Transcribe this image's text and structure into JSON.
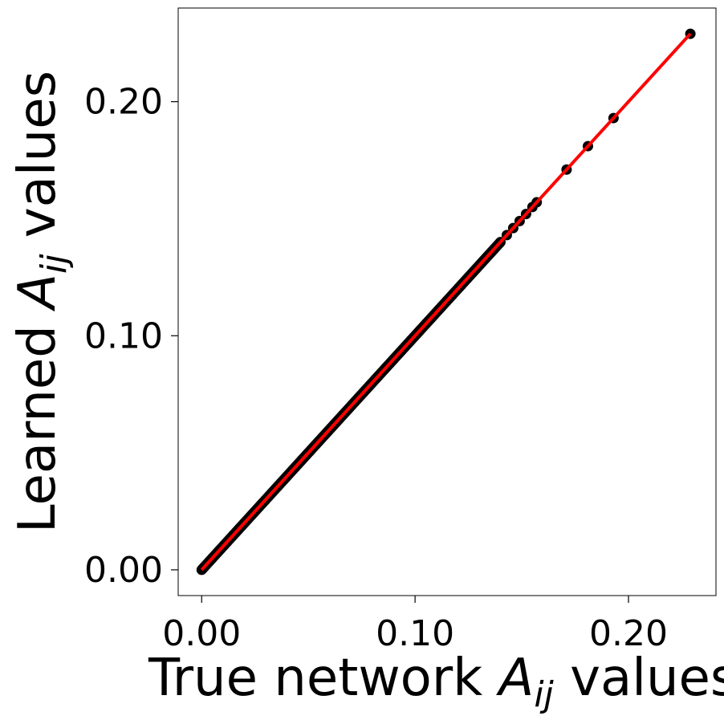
{
  "chart_data": {
    "type": "scatter",
    "xlabel": "True network A_ij values",
    "ylabel": "Learned A_ij values",
    "xlabel_prefix": "True network ",
    "xlabel_suffix": " values",
    "ylabel_prefix": "Learned ",
    "ylabel_suffix": " values",
    "xlim": [
      -0.011,
      0.241
    ],
    "ylim": [
      -0.011,
      0.24
    ],
    "xticks": [
      0.0,
      0.1,
      0.2
    ],
    "yticks": [
      0.0,
      0.1,
      0.2
    ],
    "xtick_labels": [
      "0.00",
      "0.10",
      "0.20"
    ],
    "ytick_labels": [
      "0.00",
      "0.10",
      "0.20"
    ],
    "grid": false,
    "series": [
      {
        "kind": "points",
        "color": "#000000",
        "x_dense_range": [
          0.0,
          0.14
        ],
        "x_dense_count": 260,
        "x_extra": [
          0.143,
          0.146,
          0.149,
          0.152,
          0.155,
          0.157,
          0.171,
          0.181,
          0.193,
          0.229
        ],
        "relation": "y = x"
      },
      {
        "kind": "fit-line",
        "color": "#ff0000",
        "x": [
          0.0,
          0.229
        ],
        "y": [
          0.0,
          0.229
        ]
      }
    ]
  }
}
